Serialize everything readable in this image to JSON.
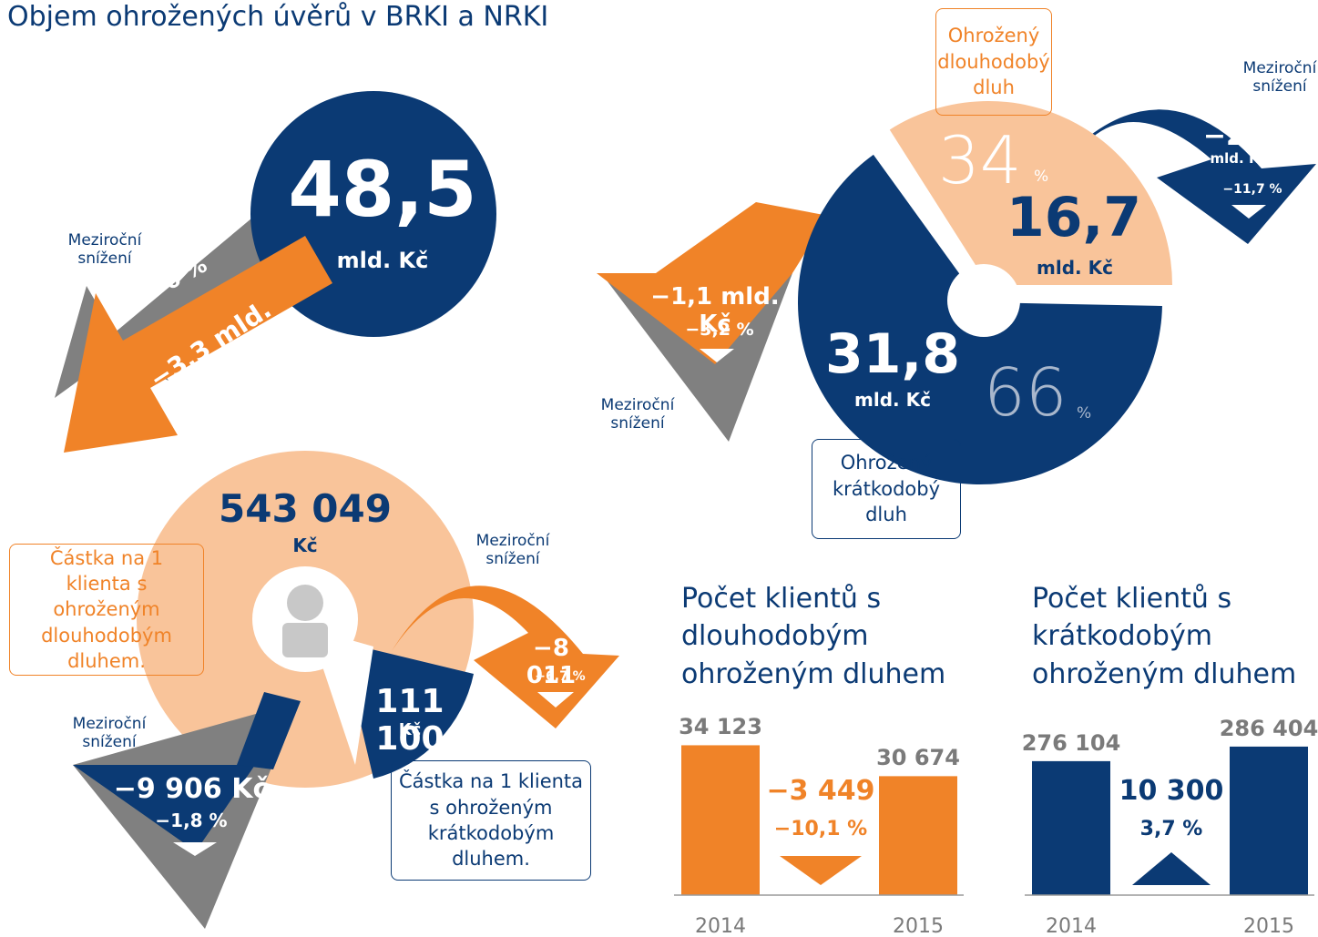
{
  "title": "Objem ohrožených úvěrů v BRKI a NRKI",
  "total": {
    "value": "48,5",
    "unit": "mld. Kč",
    "decline": {
      "label": "Meziroční snížení",
      "pct": "−6 %",
      "abs": "−3,3 mld. Kč"
    }
  },
  "long_term": {
    "label": "Ohrožený dlouhodobý dluh",
    "share": 34,
    "share_unit": "%",
    "value": "16,7",
    "unit": "mld. Kč",
    "decline": {
      "label": "Meziroční snížení",
      "abs": "−2,2",
      "abs_unit": "mld. Kč",
      "pct": "−11,7 %"
    }
  },
  "short_term": {
    "label": "Ohrožený krátkodobý dluh",
    "share": 66,
    "share_unit": "%",
    "value": "31,8",
    "unit": "mld. Kč",
    "decline": {
      "label": "Meziroční snížení",
      "abs": "−1,1 mld. Kč",
      "pct": "−3,2 %"
    }
  },
  "per_client_long": {
    "label": "Částka na 1 klienta s ohroženým dlouhodobým dluhem.",
    "value": "543 049",
    "unit": "Kč",
    "decline": {
      "label": "Meziroční snížení",
      "abs": "−9 906 Kč",
      "pct": "−1,8 %"
    }
  },
  "per_client_short": {
    "label": "Částka na 1 klienta s ohroženým krátkodobým dluhem.",
    "value": "111 100",
    "unit": "Kč",
    "decline": {
      "label": "Meziroční snížení",
      "abs": "−8 011",
      "pct": "−6,7 %"
    }
  },
  "chart_data": [
    {
      "type": "bar",
      "title": "Počet klientů s dlouhodobým ohroženým dluhem",
      "categories": [
        "2014",
        "2015"
      ],
      "values": [
        34123,
        30674
      ],
      "value_labels": [
        "34 123",
        "30 674"
      ],
      "color": "#f08328",
      "label_color": "#7a7a7a",
      "change": "−3 449",
      "change_pct": "−10,1 %",
      "change_color": "#f08328",
      "change_dir": "down",
      "ylim": [
        17400,
        36200
      ]
    },
    {
      "type": "bar",
      "title": "Počet klientů s krátkodobým ohroženým dluhem",
      "categories": [
        "2014",
        "2015"
      ],
      "values": [
        276104,
        286404
      ],
      "value_labels": [
        "276 104",
        "286 404"
      ],
      "color": "#0b3a74",
      "label_color": "#7a7a7a",
      "change": "10 300",
      "change_pct": "3,7 %",
      "change_color": "#0b3a74",
      "change_dir": "up",
      "ylim": [
        181400,
        300500
      ]
    }
  ]
}
